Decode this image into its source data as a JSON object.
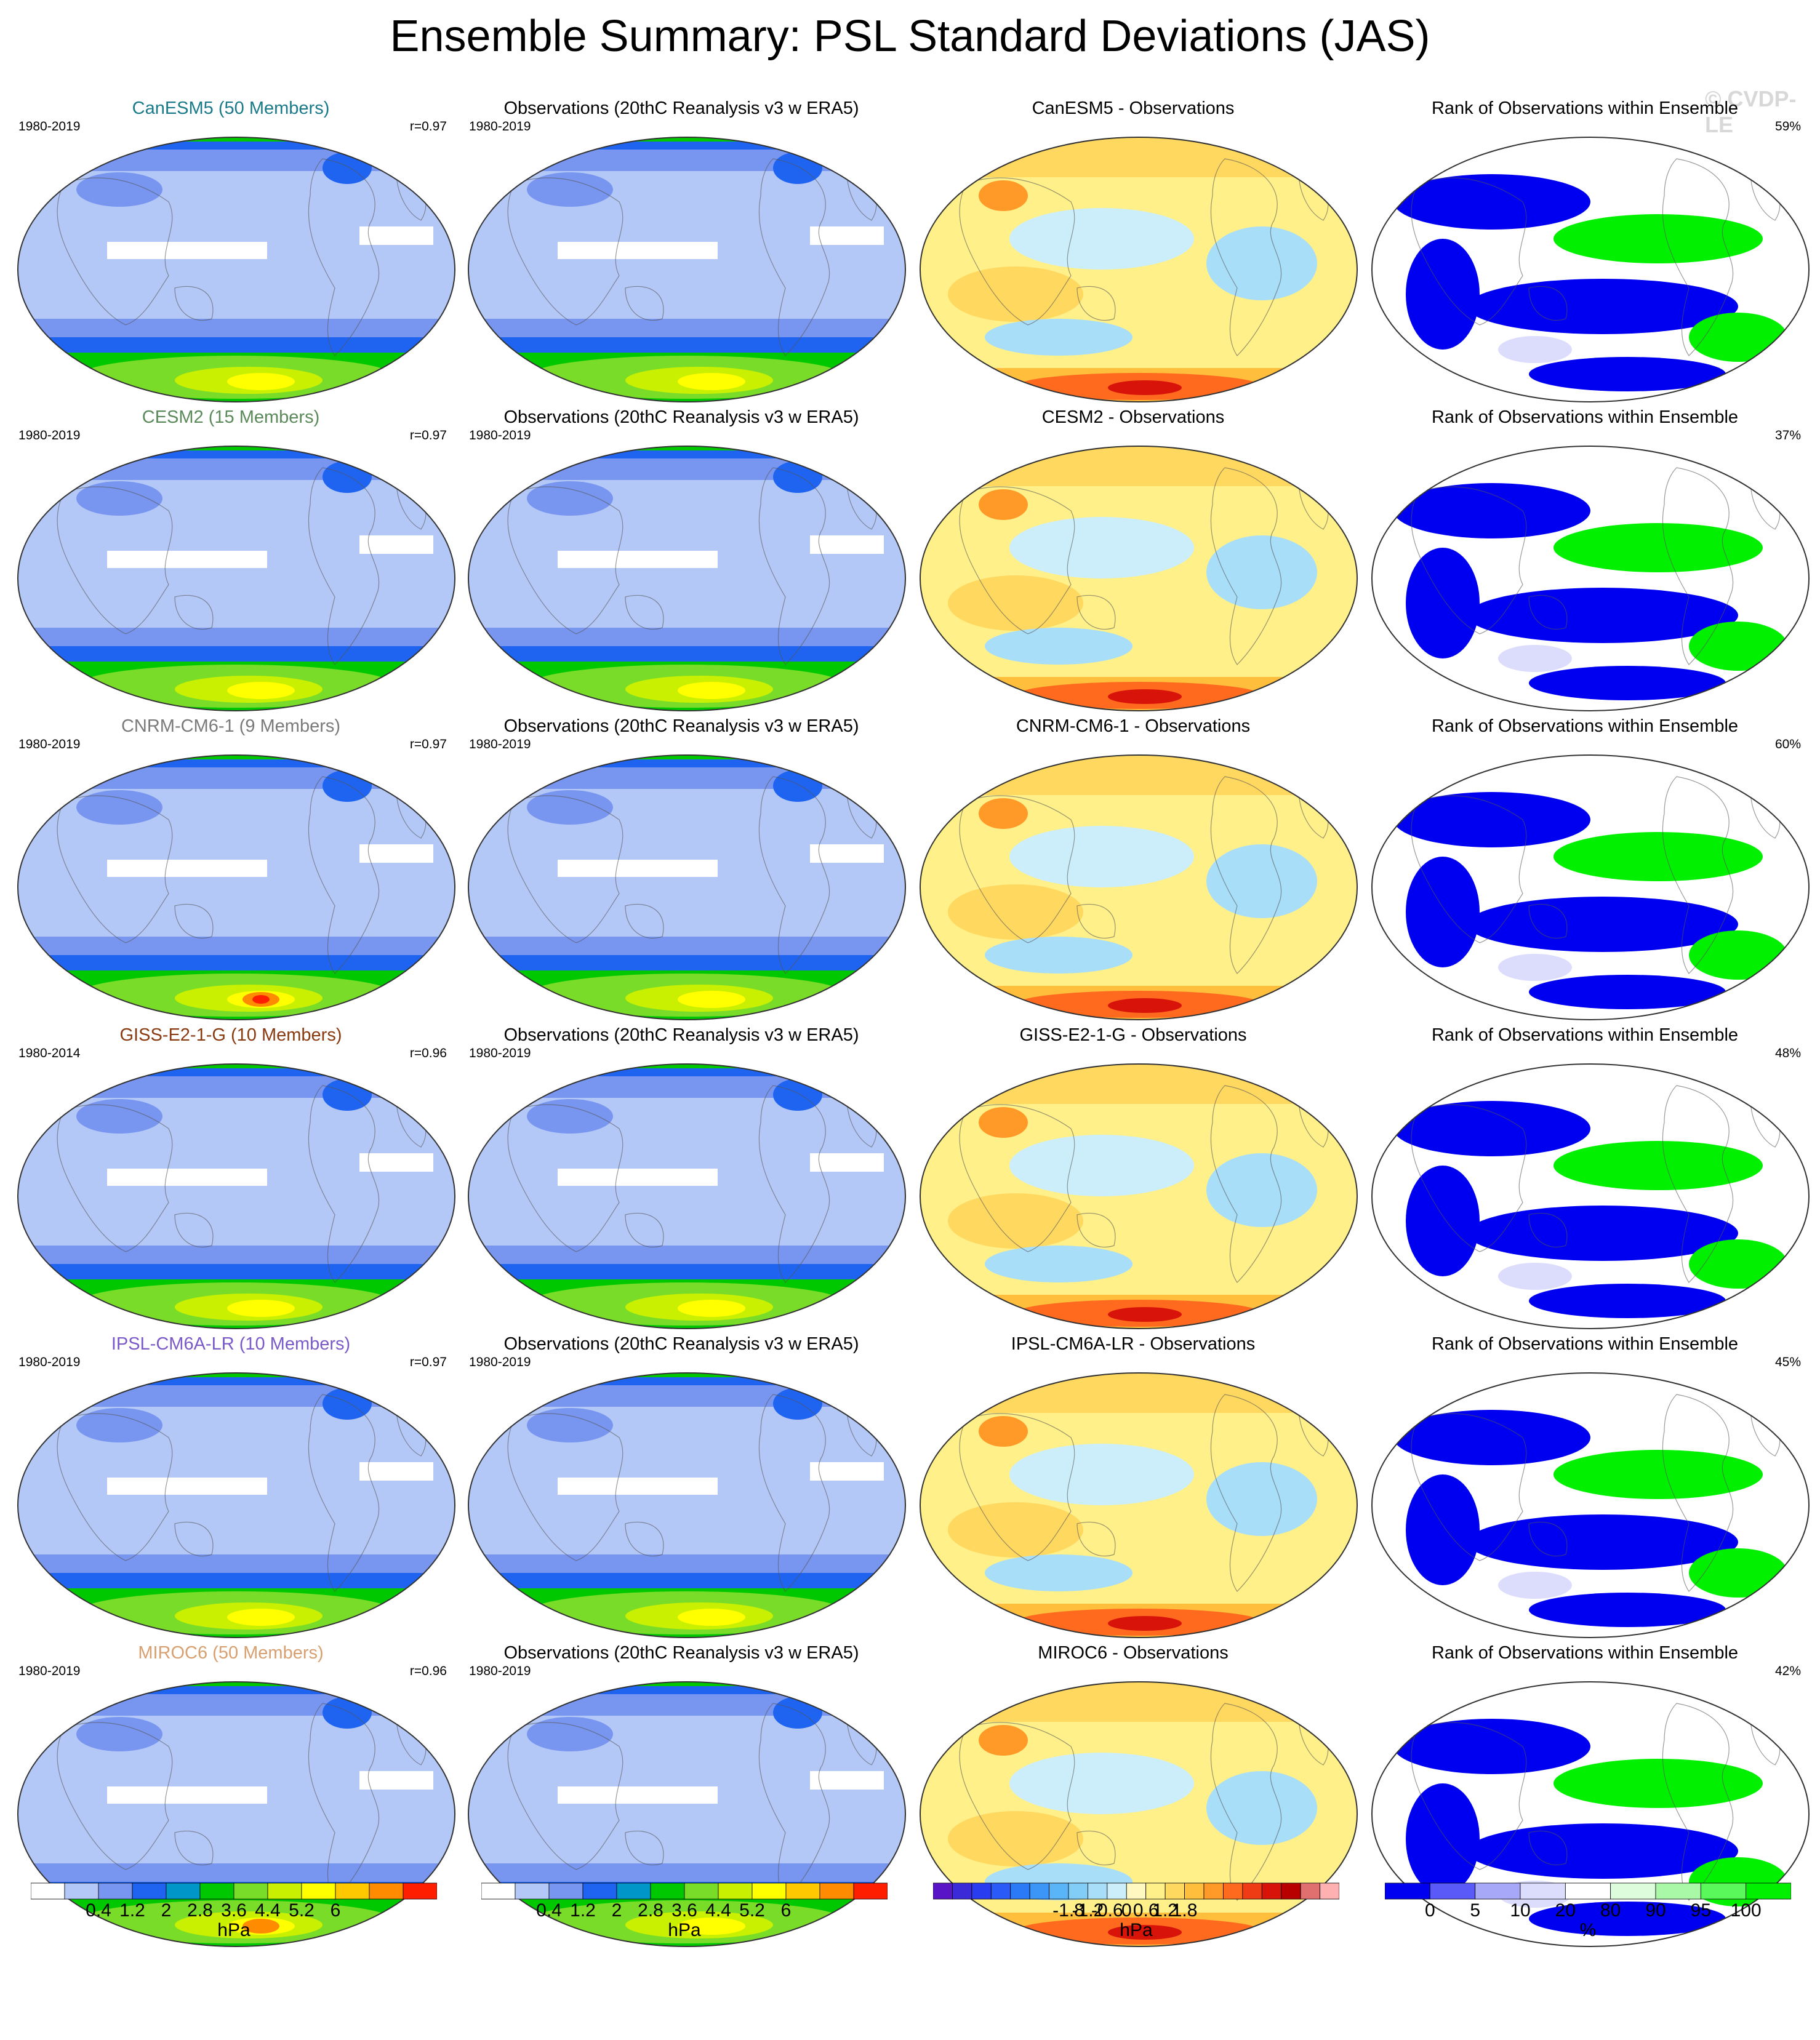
{
  "title": "Ensemble Summary: PSL Standard Deviations (JAS)",
  "watermark": "© CVDP-LE",
  "rows": [
    {
      "model_title": "CanESM5 (50 Members)",
      "model_color": "#1a7a8a",
      "model_years": "1980-2019",
      "r": "r=0.97",
      "obs_title": "Observations (20thC Reanalysis v3 w ERA5)",
      "obs_years": "1980-2019",
      "diff_title": "CanESM5 - Observations",
      "rank_title": "Rank of Observations within Ensemble",
      "rank_pct": "59%"
    },
    {
      "model_title": "CESM2 (15 Members)",
      "model_color": "#5a8a5a",
      "model_years": "1980-2019",
      "r": "r=0.97",
      "obs_title": "Observations (20thC Reanalysis v3 w ERA5)",
      "obs_years": "1980-2019",
      "diff_title": "CESM2 - Observations",
      "rank_title": "Rank of Observations within Ensemble",
      "rank_pct": "37%"
    },
    {
      "model_title": "CNRM-CM6-1 (9 Members)",
      "model_color": "#7a7a7a",
      "model_years": "1980-2019",
      "r": "r=0.97",
      "obs_title": "Observations (20thC Reanalysis v3 w ERA5)",
      "obs_years": "1980-2019",
      "diff_title": "CNRM-CM6-1 - Observations",
      "rank_title": "Rank of Observations within Ensemble",
      "rank_pct": "60%"
    },
    {
      "model_title": "GISS-E2-1-G (10 Members)",
      "model_color": "#8a3a10",
      "model_years": "1980-2014",
      "r": "r=0.96",
      "obs_title": "Observations (20thC Reanalysis v3 w ERA5)",
      "obs_years": "1980-2019",
      "diff_title": "GISS-E2-1-G - Observations",
      "rank_title": "Rank of Observations within Ensemble",
      "rank_pct": "48%"
    },
    {
      "model_title": "IPSL-CM6A-LR (10 Members)",
      "model_color": "#7a5ac8",
      "model_years": "1980-2019",
      "r": "r=0.97",
      "obs_title": "Observations (20thC Reanalysis v3 w ERA5)",
      "obs_years": "1980-2019",
      "diff_title": "IPSL-CM6A-LR - Observations",
      "rank_title": "Rank of Observations within Ensemble",
      "rank_pct": "45%"
    },
    {
      "model_title": "MIROC6 (50 Members)",
      "model_color": "#d8a070",
      "model_years": "1980-2019",
      "r": "r=0.96",
      "obs_title": "Observations (20thC Reanalysis v3 w ERA5)",
      "obs_years": "1980-2019",
      "diff_title": "MIROC6 - Observations",
      "rank_title": "Rank of Observations within Ensemble",
      "rank_pct": "42%"
    }
  ],
  "colorbars": {
    "std": {
      "unit": "hPa",
      "ticks": [
        "0.4",
        "1.2",
        "2",
        "2.8",
        "3.6",
        "4.4",
        "5.2",
        "6"
      ],
      "colors": [
        "#ffffff",
        "#b4c8f8",
        "#7896f0",
        "#1e64f0",
        "#0096c8",
        "#00c800",
        "#78dc28",
        "#c8f000",
        "#ffff00",
        "#ffc800",
        "#ff8c00",
        "#ff1e00"
      ]
    },
    "diff": {
      "unit": "hPa",
      "ticks": [
        "-1.8",
        "-1.2",
        "-0.6",
        "0",
        "0.6",
        "1.2",
        "1.8"
      ],
      "colors": [
        "#5a14c8",
        "#3a2ad8",
        "#2a3cf0",
        "#2a5af8",
        "#2a7af8",
        "#3c96f8",
        "#5ab4f8",
        "#82cdf8",
        "#a8def8",
        "#cceefa",
        "#fff8c0",
        "#fff08a",
        "#ffd860",
        "#ffbe3c",
        "#ff9a28",
        "#ff6a1e",
        "#f03c14",
        "#d8140a",
        "#b80000",
        "#e07070",
        "#ffb0b0"
      ]
    },
    "rank": {
      "unit": "%",
      "ticks": [
        "0",
        "5",
        "10",
        "20",
        "80",
        "90",
        "95",
        "100"
      ],
      "colors": [
        "#0000f0",
        "#5a5af8",
        "#a8a8f8",
        "#dcdcfc",
        "#ffffff",
        "#dcfcdc",
        "#a8f8a8",
        "#5af85a",
        "#00f000"
      ]
    }
  }
}
